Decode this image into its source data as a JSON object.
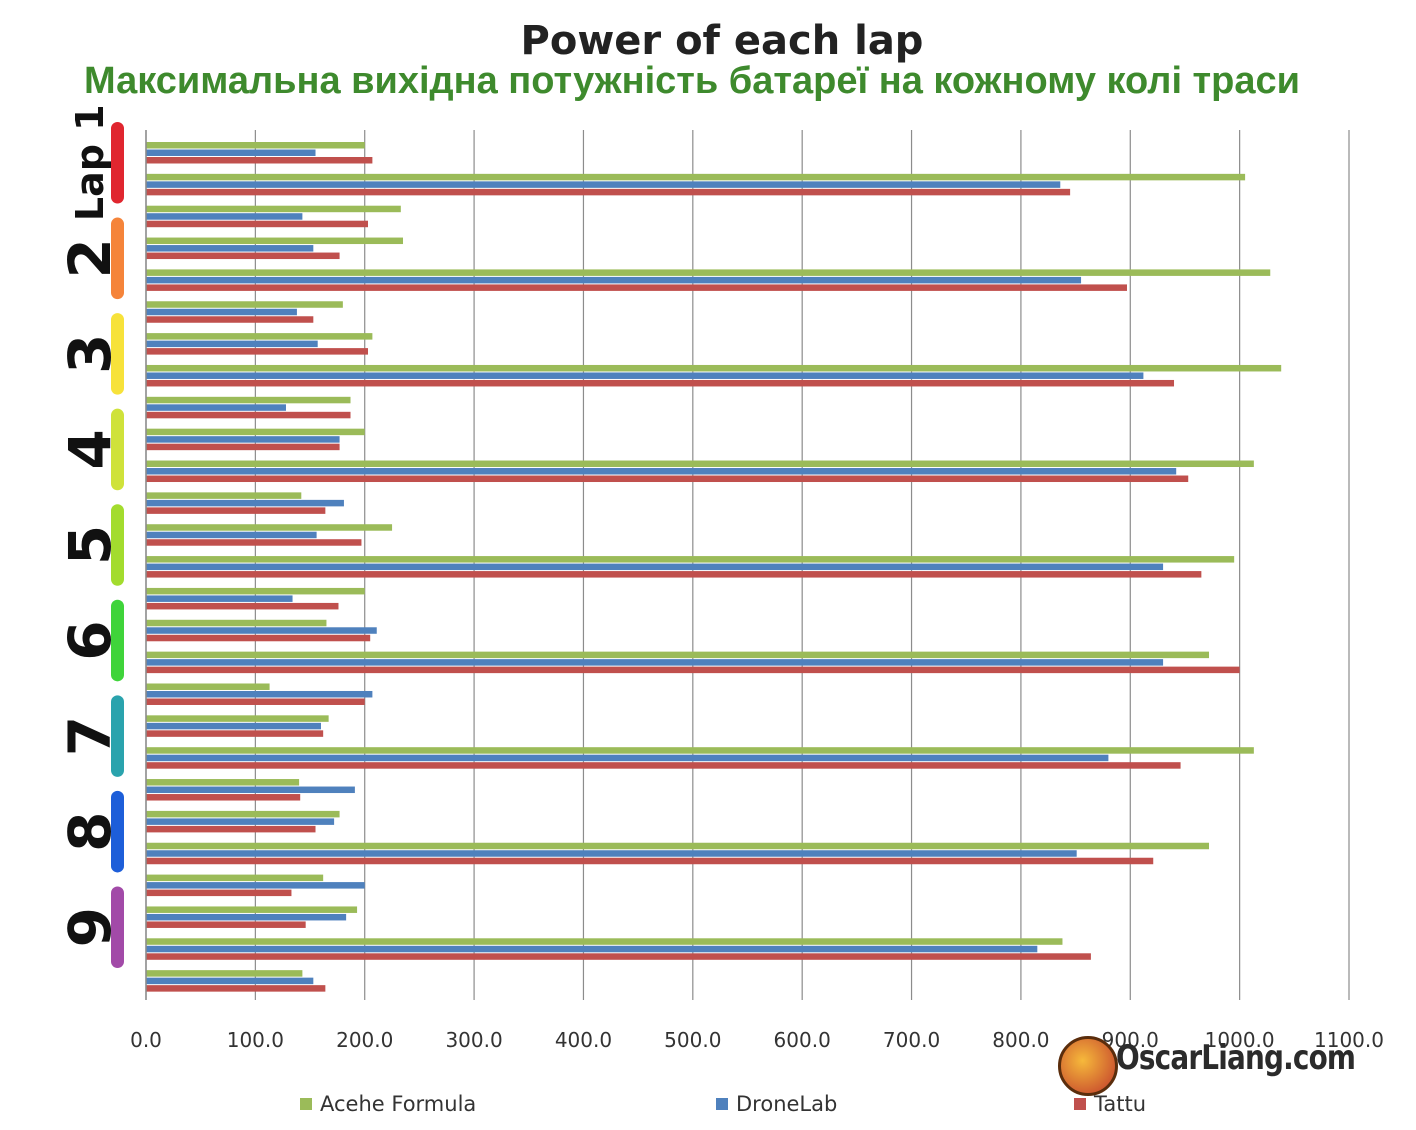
{
  "title": "Power of each lap",
  "subtitle": "Максимальна вихідна потужність батареї на кожному колі траси",
  "watermark": "OscarLiang.com",
  "chart_data": {
    "type": "bar",
    "orientation": "horizontal",
    "title": "Power of each lap",
    "xlim": [
      0,
      1100
    ],
    "x_ticks": [
      "0.0",
      "100.0",
      "200.0",
      "300.0",
      "400.0",
      "500.0",
      "600.0",
      "700.0",
      "800.0",
      "900.0",
      "1000.0",
      "1100.0"
    ],
    "grid": true,
    "legend_position": "bottom",
    "lap_labels": [
      "Lap 1",
      "2",
      "3",
      "4",
      "5",
      "6",
      "7",
      "8",
      "9"
    ],
    "lap_colors": [
      "#e0262f",
      "#f5843a",
      "#f7e23a",
      "#cfe23a",
      "#a3dc2e",
      "#3fd43a",
      "#2aa3ad",
      "#1d5ed9",
      "#a24aa8"
    ],
    "series": [
      {
        "name": "Acehe Formula",
        "color": "#9bbb59",
        "values": [
          200,
          1005,
          233,
          235,
          1028,
          180,
          207,
          1038,
          187,
          200,
          1013,
          142,
          225,
          995,
          200,
          165,
          972,
          113,
          167,
          1013,
          140,
          177,
          972,
          162,
          193,
          838,
          143
        ]
      },
      {
        "name": "DroneLab",
        "color": "#4f81bd",
        "values": [
          155,
          836,
          143,
          153,
          855,
          138,
          157,
          912,
          128,
          177,
          942,
          181,
          156,
          930,
          134,
          211,
          930,
          207,
          160,
          880,
          191,
          172,
          851,
          200,
          183,
          815,
          153
        ]
      },
      {
        "name": "Tattu",
        "color": "#c0504d",
        "values": [
          207,
          845,
          203,
          177,
          897,
          153,
          203,
          940,
          187,
          177,
          953,
          164,
          197,
          965,
          176,
          205,
          1000,
          200,
          162,
          946,
          141,
          155,
          921,
          133,
          146,
          864,
          164
        ]
      }
    ]
  }
}
